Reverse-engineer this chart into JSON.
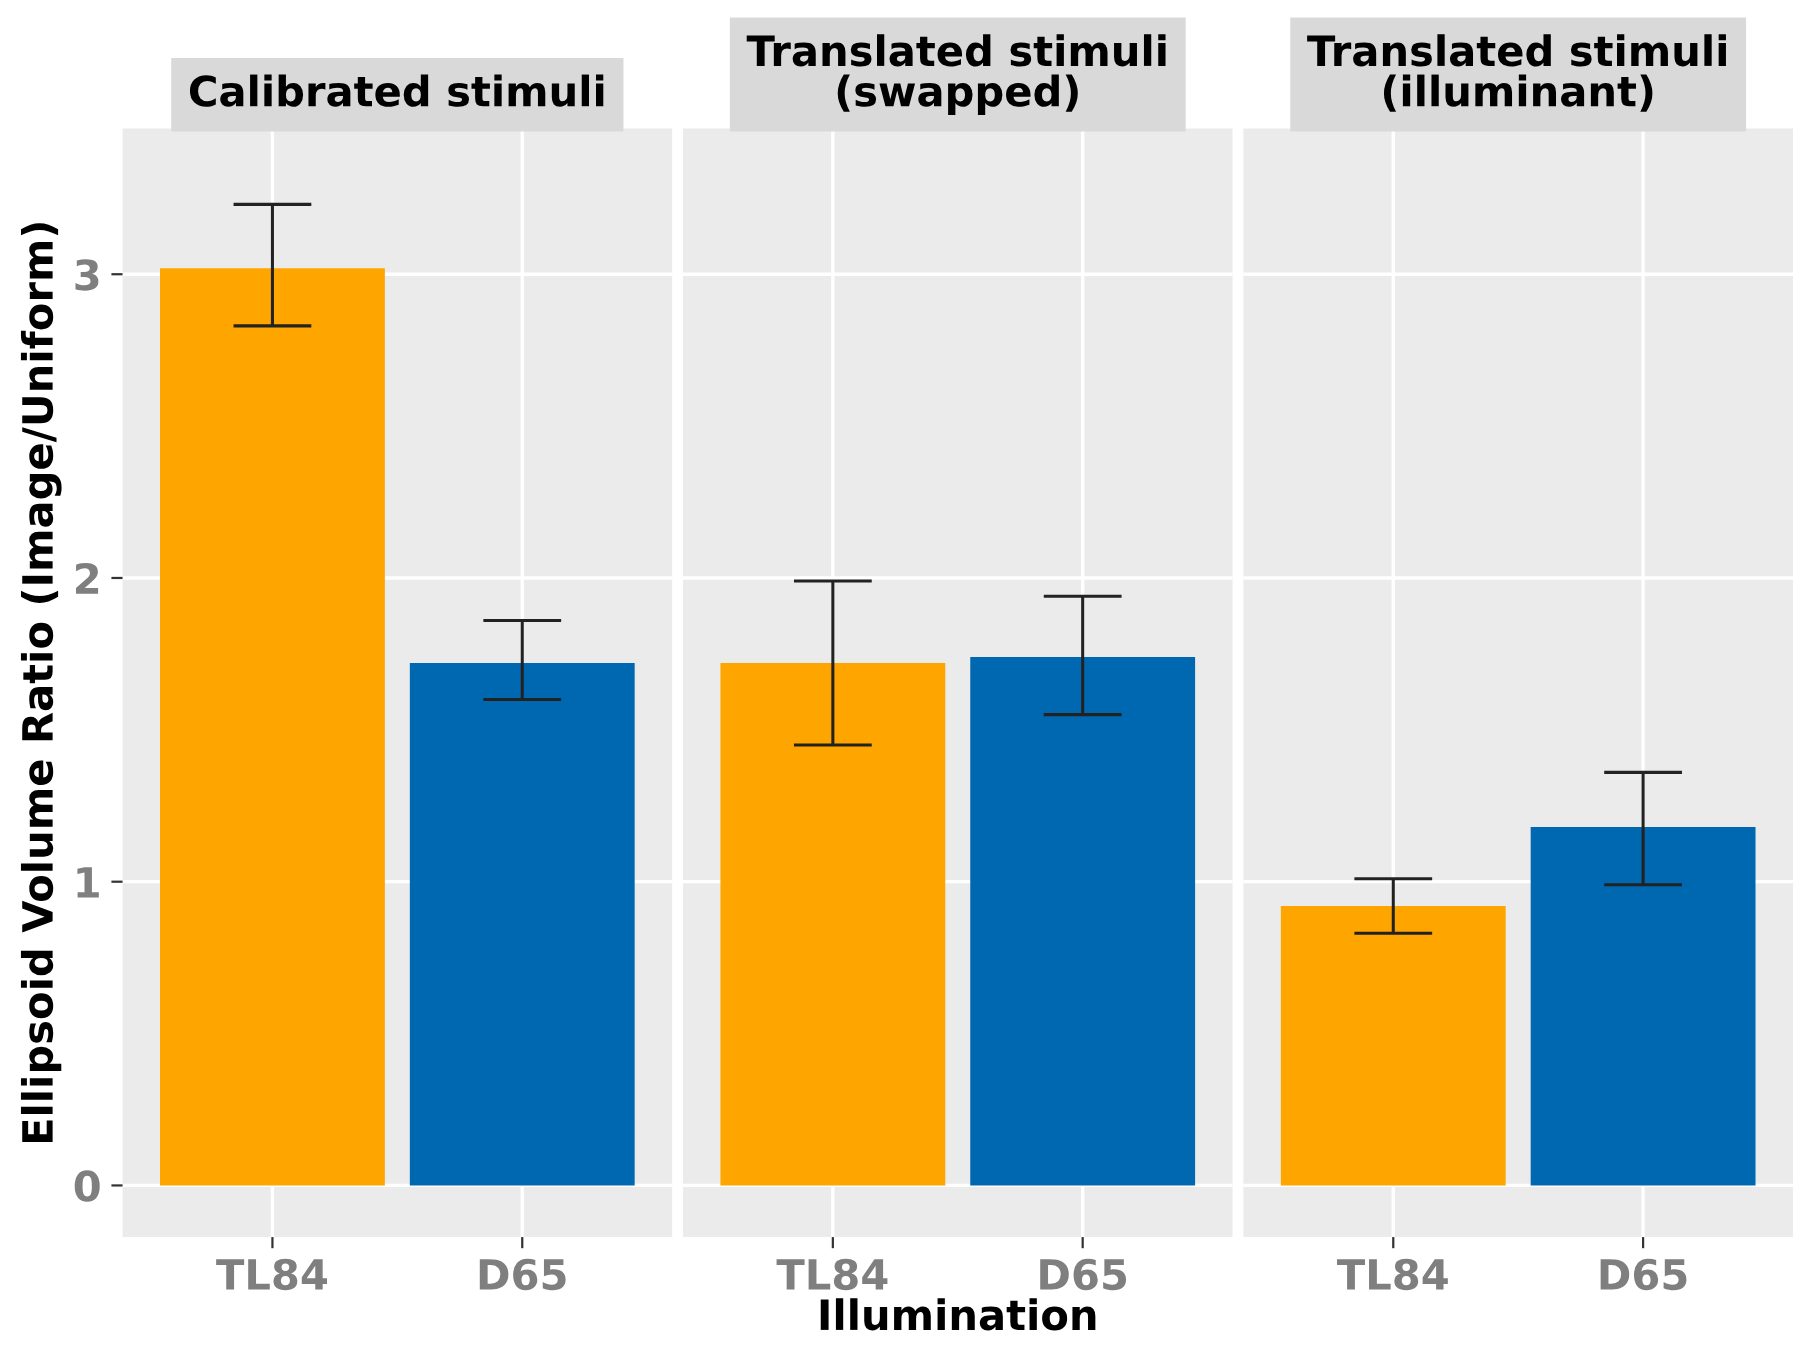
{
  "chart_data": [
    {
      "type": "bar",
      "title": "Calibrated stimuli",
      "ylabel": "Ellipsoid Volume Ratio (Image/Uniform)",
      "categories": [
        "TL84",
        "D65"
      ],
      "values": [
        3.02,
        1.72
      ],
      "colors": [
        "#ffa500",
        "#0068b0"
      ],
      "errors": [
        [
          2.83,
          3.23
        ],
        [
          1.6,
          1.86
        ]
      ],
      "ylim": [
        -0.17,
        3.48
      ],
      "yticks": [
        0,
        1,
        2,
        3
      ],
      "grid": true
    },
    {
      "type": "bar",
      "title": "Translated stimuli\n(swapped)",
      "xlabel": "Illumination",
      "categories": [
        "TL84",
        "D65"
      ],
      "values": [
        1.72,
        1.74
      ],
      "colors": [
        "#ffa500",
        "#0068b0"
      ],
      "errors": [
        [
          1.45,
          1.99
        ],
        [
          1.55,
          1.94
        ]
      ],
      "ylim": [
        -0.17,
        3.48
      ],
      "yticks": [
        0,
        1,
        2,
        3
      ],
      "grid": true,
      "tick_labels": "x"
    },
    {
      "type": "bar",
      "title": "Translated stimuli\n(illuminant)",
      "categories": [
        "TL84",
        "D65"
      ],
      "values": [
        0.92,
        1.18
      ],
      "colors": [
        "#ffa500",
        "#0068b0"
      ],
      "errors": [
        [
          0.83,
          1.01
        ],
        [
          0.99,
          1.36
        ]
      ],
      "ylim": [
        -0.17,
        3.48
      ],
      "yticks": [
        0,
        1,
        2,
        3
      ],
      "grid": true,
      "tick_labels": "x"
    }
  ]
}
